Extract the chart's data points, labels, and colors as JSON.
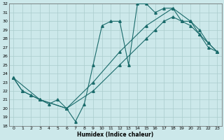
{
  "xlabel": "Humidex (Indice chaleur)",
  "bg_color": "#cce8ea",
  "grid_color": "#aacccc",
  "line_color": "#1a6b6b",
  "xlim": [
    -0.5,
    23.5
  ],
  "ylim": [
    18,
    32
  ],
  "yticks": [
    18,
    19,
    20,
    21,
    22,
    23,
    24,
    25,
    26,
    27,
    28,
    29,
    30,
    31,
    32
  ],
  "xticks": [
    0,
    1,
    2,
    3,
    4,
    5,
    6,
    7,
    8,
    9,
    10,
    11,
    12,
    13,
    14,
    15,
    16,
    17,
    18,
    19,
    20,
    21,
    22,
    23
  ],
  "line1_x": [
    0,
    1,
    2,
    3,
    4,
    5,
    6,
    7,
    8,
    9,
    10,
    11,
    12,
    13,
    14,
    15,
    16,
    17,
    18,
    19,
    20,
    21,
    22,
    23
  ],
  "line1_y": [
    23.5,
    22.0,
    21.5,
    21.0,
    20.5,
    21.0,
    20.0,
    18.5,
    20.5,
    25.0,
    29.5,
    30.0,
    30.0,
    25.0,
    32.0,
    32.0,
    31.0,
    31.5,
    31.5,
    30.0,
    29.5,
    28.5,
    27.0,
    26.5
  ],
  "line2_x": [
    0,
    1,
    2,
    3,
    6,
    9,
    12,
    15,
    16,
    17,
    18,
    19,
    20,
    21,
    22,
    23
  ],
  "line2_y": [
    23.5,
    22.0,
    21.5,
    21.0,
    20.0,
    22.0,
    25.0,
    28.0,
    29.0,
    30.0,
    30.5,
    30.0,
    30.0,
    28.5,
    27.5,
    26.5
  ],
  "line3_x": [
    0,
    3,
    6,
    9,
    12,
    15,
    18,
    20,
    21,
    22,
    23
  ],
  "line3_y": [
    23.5,
    21.0,
    20.0,
    23.0,
    26.5,
    29.5,
    31.5,
    30.0,
    29.0,
    27.5,
    26.5
  ]
}
